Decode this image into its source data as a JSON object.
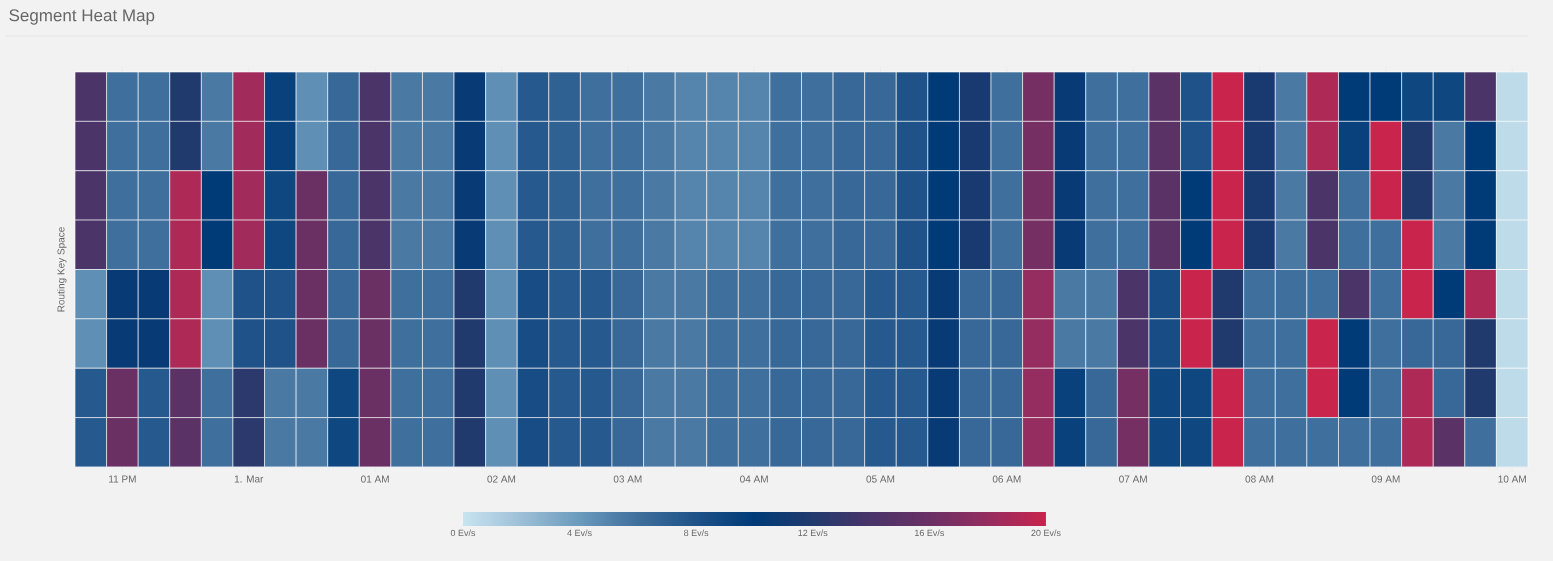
{
  "chart_data": {
    "type": "heatmap",
    "title": "Segment Heat Map",
    "ylabel": "Routing Key Space",
    "categories": [
      null,
      "11 PM",
      null,
      null,
      null,
      "1. Mar",
      null,
      null,
      null,
      "01 AM",
      null,
      null,
      null,
      "02 AM",
      null,
      null,
      null,
      "03 AM",
      null,
      null,
      null,
      "04 AM",
      null,
      null,
      null,
      "05 AM",
      null,
      null,
      null,
      "06 AM",
      null,
      null,
      null,
      "07 AM",
      null,
      null,
      null,
      "08 AM",
      null,
      null,
      null,
      "09 AM",
      null,
      null,
      null,
      "10 AM"
    ],
    "y_categories": [
      null,
      null,
      null,
      null,
      null,
      null,
      null,
      null
    ],
    "cells": [
      [
        14,
        6,
        6,
        12,
        5.5,
        18.5,
        9.5,
        4.5,
        6.5,
        14,
        5.5,
        5.5,
        10.5,
        4.5,
        7.5,
        7,
        6,
        6,
        5.5,
        5,
        5,
        5,
        6,
        6,
        6.5,
        6.5,
        8,
        10,
        11.5,
        6,
        16.5,
        10.5,
        6,
        6,
        15,
        8,
        20,
        11.5,
        5.5,
        19,
        10,
        10,
        9,
        9,
        14,
        0.5
      ],
      [
        14,
        6,
        6,
        12,
        5.5,
        18.5,
        9.5,
        4.5,
        6.5,
        14,
        5.5,
        5.5,
        10.5,
        4.5,
        7.5,
        7,
        6,
        6,
        5.5,
        5,
        5,
        5,
        6,
        6,
        6.5,
        6.5,
        8,
        10,
        11.5,
        6,
        16.5,
        10.5,
        6,
        6,
        15,
        8,
        20,
        11.5,
        5.5,
        19,
        9.5,
        20,
        12,
        5.5,
        10,
        0.5
      ],
      [
        14,
        6,
        6,
        19,
        10,
        18.5,
        9,
        16,
        6.5,
        14,
        5.5,
        5.5,
        10.5,
        4.5,
        7.5,
        7,
        6,
        6,
        5.5,
        5,
        5,
        5,
        6,
        6,
        6.5,
        6.5,
        8,
        10,
        11.5,
        6,
        16.5,
        10.5,
        6,
        6,
        15,
        10,
        20,
        11.5,
        5.5,
        14,
        6,
        20,
        12,
        5.5,
        10,
        0.5
      ],
      [
        14,
        6,
        6,
        19,
        10,
        18.5,
        9,
        16,
        6.5,
        14,
        5.5,
        5.5,
        10.5,
        4.5,
        7.5,
        7,
        6,
        6,
        5.5,
        5,
        5,
        5,
        6,
        6,
        6.5,
        6.5,
        8,
        10,
        11.5,
        6,
        16.5,
        10.5,
        6,
        6,
        15,
        10,
        20,
        11.5,
        5.5,
        14,
        6,
        6,
        20,
        5.5,
        10,
        0.5
      ],
      [
        4.5,
        10.5,
        10.5,
        19,
        4.5,
        8,
        8,
        16,
        6.5,
        16,
        6,
        6,
        12,
        4.5,
        8.5,
        7.5,
        7.5,
        6.5,
        5.5,
        5.5,
        6,
        6,
        6.5,
        6.5,
        6.5,
        7.5,
        7.5,
        10.5,
        6.5,
        6.5,
        18,
        5.5,
        5.5,
        14,
        8.5,
        20,
        12,
        6,
        6,
        6,
        14,
        6,
        20,
        10,
        19,
        0.5
      ],
      [
        4.5,
        10.5,
        10.5,
        19,
        4.5,
        8,
        8,
        16,
        6.5,
        16,
        6,
        6,
        12,
        4.5,
        8.5,
        7.5,
        7.5,
        6.5,
        5.5,
        5.5,
        6,
        6,
        6.5,
        6.5,
        6.5,
        7.5,
        7.5,
        10.5,
        6.5,
        6.5,
        18,
        5.5,
        5.5,
        14,
        8.5,
        20,
        12,
        6,
        6,
        20,
        10,
        6,
        6.5,
        6.5,
        12,
        0.5
      ],
      [
        7.5,
        16,
        7.5,
        15,
        6,
        12.5,
        5.5,
        5.5,
        9,
        16,
        6,
        6,
        12,
        4.5,
        8.5,
        7.5,
        7.5,
        6.5,
        5.5,
        5.5,
        6,
        6,
        6.5,
        6.5,
        6.5,
        7.5,
        7.5,
        10.5,
        6.5,
        6.5,
        18,
        9.5,
        6.5,
        16.5,
        9,
        9,
        20,
        6,
        6,
        20,
        10,
        6,
        19,
        6.5,
        12,
        0.5
      ],
      [
        7.5,
        16,
        7.5,
        15,
        6,
        12.5,
        5.5,
        5.5,
        9,
        16,
        6,
        6,
        12,
        4.5,
        8.5,
        7.5,
        7.5,
        6.5,
        5.5,
        5.5,
        6,
        6,
        6.5,
        6.5,
        6.5,
        7.5,
        7.5,
        10.5,
        6.5,
        6.5,
        18,
        9.5,
        6.5,
        16.5,
        9,
        9,
        20,
        6,
        6,
        6,
        6,
        6,
        19,
        15,
        6,
        0.5
      ]
    ],
    "clim": [
      0,
      20
    ],
    "cticks": [
      {
        "value": 0,
        "label": "0 Ev/s"
      },
      {
        "value": 4,
        "label": "4 Ev/s"
      },
      {
        "value": 8,
        "label": "8 Ev/s"
      },
      {
        "value": 12,
        "label": "12 Ev/s"
      },
      {
        "value": 16,
        "label": "16 Ev/s"
      },
      {
        "value": 20,
        "label": "20 Ev/s"
      }
    ]
  }
}
